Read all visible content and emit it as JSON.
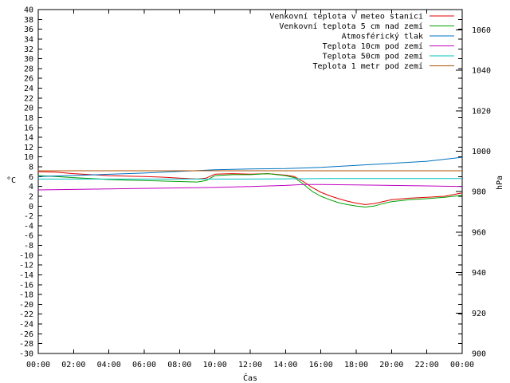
{
  "chart_data": {
    "type": "line",
    "xlabel": "Čas",
    "ylabel": "°C",
    "y2label": "hPa",
    "xlim": [
      0,
      24
    ],
    "ylim": [
      -30,
      40
    ],
    "y2lim": [
      900,
      1070
    ],
    "x_ticks": [
      "00:00",
      "02:00",
      "04:00",
      "06:00",
      "08:00",
      "10:00",
      "12:00",
      "14:00",
      "16:00",
      "18:00",
      "20:00",
      "22:00",
      "00:00"
    ],
    "y_ticks": [
      40,
      38,
      36,
      34,
      32,
      30,
      28,
      26,
      24,
      22,
      20,
      18,
      16,
      14,
      12,
      10,
      8,
      6,
      4,
      2,
      0,
      -2,
      -4,
      -6,
      -8,
      -10,
      -12,
      -14,
      -16,
      -18,
      -20,
      -22,
      -24,
      -26,
      -28,
      -30
    ],
    "y2_ticks": [
      1060,
      1040,
      1020,
      1000,
      980,
      960,
      940,
      920,
      900
    ],
    "grid": false,
    "legend_position": "top-right",
    "series": [
      {
        "name": "Venkovní teplota v meteo stanici",
        "color": "#e00000",
        "axis": "left",
        "x": [
          0,
          1,
          2,
          3,
          4,
          5,
          6,
          7,
          8,
          9,
          9.5,
          10,
          11,
          12,
          13,
          14,
          14.5,
          15,
          15.5,
          16,
          16.5,
          17,
          17.5,
          18,
          18.5,
          19,
          19.5,
          20,
          21,
          22,
          23,
          24
        ],
        "y": [
          7.0,
          6.9,
          6.6,
          6.4,
          6.2,
          6.1,
          6.0,
          5.9,
          5.7,
          5.5,
          5.7,
          6.5,
          6.6,
          6.5,
          6.6,
          6.3,
          6.0,
          5.0,
          3.8,
          2.8,
          2.1,
          1.5,
          1.0,
          0.6,
          0.3,
          0.5,
          0.9,
          1.3,
          1.6,
          1.8,
          2.0,
          2.7
        ]
      },
      {
        "name": "Venkovní teplota 5 cm nad zemí",
        "color": "#00a000",
        "axis": "left",
        "x": [
          0,
          1,
          2,
          3,
          4,
          5,
          6,
          7,
          8,
          9,
          9.5,
          10,
          11,
          12,
          13,
          14,
          14.5,
          15,
          15.5,
          16,
          16.5,
          17,
          17.5,
          18,
          18.5,
          19,
          19.5,
          20,
          21,
          22,
          23,
          24
        ],
        "y": [
          6.2,
          6.0,
          5.8,
          5.6,
          5.4,
          5.3,
          5.2,
          5.1,
          5.0,
          4.9,
          5.2,
          6.2,
          6.4,
          6.4,
          6.6,
          6.2,
          5.8,
          4.5,
          3.0,
          2.0,
          1.3,
          0.7,
          0.3,
          0.0,
          -0.2,
          0.0,
          0.5,
          0.9,
          1.3,
          1.5,
          1.8,
          2.2
        ]
      },
      {
        "name": "Atmosférický tlak",
        "color": "#0070c0",
        "axis": "right",
        "x": [
          0,
          2,
          4,
          6,
          8,
          10,
          12,
          14,
          16,
          18,
          20,
          22,
          23,
          24
        ],
        "y": [
          987.5,
          988.0,
          988.6,
          989.2,
          990.0,
          990.8,
          991.2,
          991.4,
          992.0,
          993.0,
          994.0,
          995.0,
          996.0,
          997.0
        ]
      },
      {
        "name": "Teplota 10cm pod zemí",
        "color": "#c000c0",
        "axis": "left",
        "x": [
          0,
          2,
          4,
          6,
          8,
          10,
          12,
          14,
          15,
          16,
          18,
          20,
          22,
          24
        ],
        "y": [
          3.3,
          3.4,
          3.5,
          3.6,
          3.7,
          3.8,
          4.0,
          4.2,
          4.4,
          4.4,
          4.3,
          4.2,
          4.1,
          4.0
        ]
      },
      {
        "name": "Teplota 50cm pod zemí",
        "color": "#00c0c0",
        "axis": "left",
        "x": [
          0,
          4,
          8,
          12,
          16,
          20,
          24
        ],
        "y": [
          5.5,
          5.5,
          5.5,
          5.5,
          5.6,
          5.6,
          5.6
        ]
      },
      {
        "name": "Teplota 1 metr pod zemí",
        "color": "#b05000",
        "axis": "left",
        "x": [
          0,
          6,
          12,
          18,
          24
        ],
        "y": [
          7.2,
          7.2,
          7.2,
          7.2,
          7.2
        ]
      }
    ]
  }
}
